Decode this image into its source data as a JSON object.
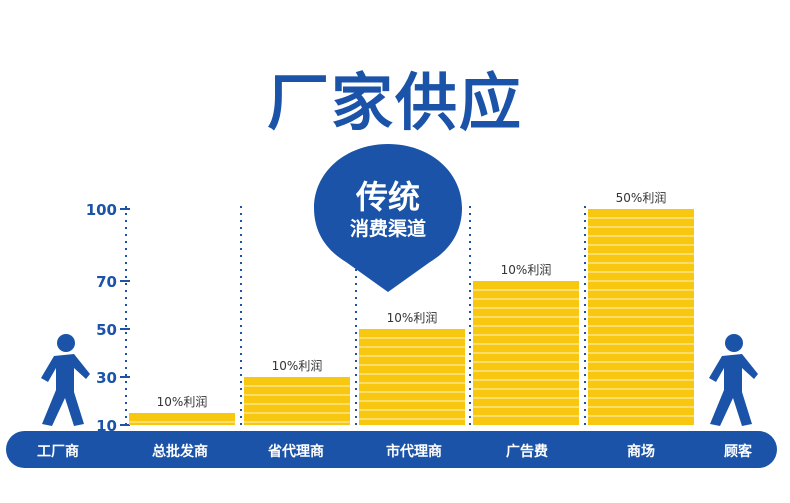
{
  "title": "厂家供应",
  "arrow": {
    "line1": "传统",
    "line2": "消费渠道"
  },
  "colors": {
    "blue": "#1a53a8",
    "bar": "#f8c70f",
    "bar_line": "#ffe8a0",
    "axis_text": "#1a53a8",
    "bottom_band": "#1a53a8",
    "person": "#1a53a8"
  },
  "icons": {
    "left": "walking-person-icon",
    "right": "walking-person-icon"
  },
  "chart_data": {
    "type": "bar",
    "categories": [
      "总批发商",
      "省代理商",
      "市代理商",
      "广告费",
      "商场"
    ],
    "values": [
      15,
      30,
      50,
      70,
      100
    ],
    "data_labels": [
      "10%利润",
      "10%利润",
      "10%利润",
      "10%利润",
      "50%利润"
    ],
    "y_ticks": [
      10,
      30,
      50,
      70,
      100
    ],
    "ylim": [
      10,
      100
    ],
    "grid": false,
    "band_labels": [
      "工厂商",
      "总批发商",
      "省代理商",
      "市代理商",
      "广告费",
      "商场",
      "顾客"
    ]
  }
}
